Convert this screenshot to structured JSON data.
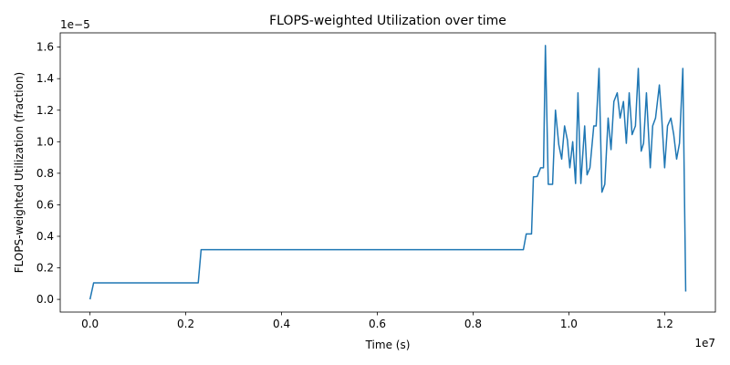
{
  "chart_data": {
    "type": "line",
    "title": "FLOPS-weighted Utilization over time",
    "x_label": "Time (s)",
    "y_label": "FLOPS-weighted Utilization (fraction)",
    "x_offset_label": "1e7",
    "y_offset_label": "1e−5",
    "xlim": [
      -622000,
      13060000
    ],
    "ylim": [
      -8.05e-07,
      1.6905e-05
    ],
    "xticks": [
      {
        "value": 0,
        "label": "0.0"
      },
      {
        "value": 2000000,
        "label": "0.2"
      },
      {
        "value": 4000000,
        "label": "0.4"
      },
      {
        "value": 6000000,
        "label": "0.6"
      },
      {
        "value": 8000000,
        "label": "0.8"
      },
      {
        "value": 10000000,
        "label": "1.0"
      },
      {
        "value": 12000000,
        "label": "1.2"
      }
    ],
    "yticks": [
      {
        "value": 0,
        "label": "0.0"
      },
      {
        "value": 2e-06,
        "label": "0.2"
      },
      {
        "value": 4e-06,
        "label": "0.4"
      },
      {
        "value": 6e-06,
        "label": "0.6"
      },
      {
        "value": 8e-06,
        "label": "0.8"
      },
      {
        "value": 1e-05,
        "label": "1.0"
      },
      {
        "value": 1.2e-05,
        "label": "1.2"
      },
      {
        "value": 1.4e-05,
        "label": "1.4"
      },
      {
        "value": 1.6e-05,
        "label": "1.6"
      }
    ],
    "x": [
      0,
      76000,
      2260000,
      2320000,
      9050000,
      9110000,
      9220000,
      9260000,
      9340000,
      9410000,
      9470000,
      9510000,
      9570000,
      9660000,
      9720000,
      9790000,
      9850000,
      9910000,
      9970000,
      10020000,
      10080000,
      10140000,
      10190000,
      10250000,
      10330000,
      10380000,
      10440000,
      10520000,
      10570000,
      10630000,
      10690000,
      10750000,
      10820000,
      10880000,
      10940000,
      11010000,
      11070000,
      11140000,
      11200000,
      11260000,
      11320000,
      11390000,
      11450000,
      11510000,
      11560000,
      11620000,
      11700000,
      11750000,
      11810000,
      11890000,
      11940000,
      12000000,
      12060000,
      12130000,
      12190000,
      12250000,
      12310000,
      12380000,
      12440000
    ],
    "series": [
      {
        "name": "utilization",
        "color": "#1f77b4",
        "values": [
          0,
          1.05e-06,
          1.05e-06,
          3.15e-06,
          3.15e-06,
          4.15e-06,
          4.15e-06,
          7.77e-06,
          7.8e-06,
          8.35e-06,
          8.35e-06,
          1.61e-05,
          7.3e-06,
          7.3e-06,
          1.2e-05,
          9.8e-06,
          8.9e-06,
          1.1e-05,
          1.01e-05,
          8.35e-06,
          1e-05,
          7.35e-06,
          1.31e-05,
          7.35e-06,
          1.1e-05,
          7.9e-06,
          8.35e-06,
          1.1e-05,
          1.1e-05,
          1.465e-05,
          6.8e-06,
          7.3e-06,
          1.15e-05,
          9.5e-06,
          1.255e-05,
          1.31e-05,
          1.15e-05,
          1.255e-05,
          9.9e-06,
          1.31e-05,
          1.045e-05,
          1.1e-05,
          1.465e-05,
          9.4e-06,
          9.9e-06,
          1.31e-05,
          8.35e-06,
          1.1e-05,
          1.15e-05,
          1.36e-05,
          1.15e-05,
          8.35e-06,
          1.1e-05,
          1.15e-05,
          1.045e-05,
          8.9e-06,
          9.9e-06,
          1.465e-05,
          5e-07
        ]
      }
    ]
  }
}
